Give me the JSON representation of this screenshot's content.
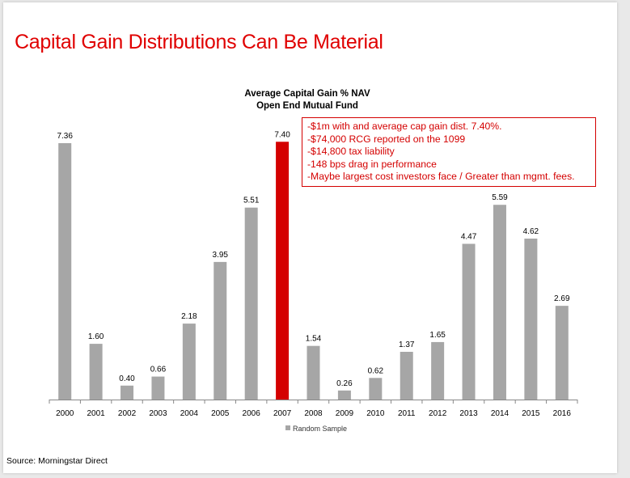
{
  "slide": {
    "title": "Capital Gain Distributions Can Be Material",
    "source": "Source: Morningstar Direct",
    "note_lines": [
      "-$1m with and average cap gain dist. 7.40%.",
      "-$74,000 RCG reported on the 1099",
      "-$14,800 tax liability",
      "-148 bps drag in performance",
      "-Maybe largest cost investors face / Greater than mgmt. fees."
    ]
  },
  "chart_data": {
    "type": "bar",
    "title": "Average Capital Gain % NAV",
    "subtitle": "Open End Mutual Fund",
    "categories": [
      "2000",
      "2001",
      "2002",
      "2003",
      "2004",
      "2005",
      "2006",
      "2007",
      "2008",
      "2009",
      "2010",
      "2011",
      "2012",
      "2013",
      "2014",
      "2015",
      "2016"
    ],
    "series": [
      {
        "name": "Random Sample",
        "values": [
          7.36,
          1.6,
          0.4,
          0.66,
          2.18,
          3.95,
          5.51,
          7.4,
          1.54,
          0.26,
          0.62,
          1.37,
          1.65,
          4.47,
          5.59,
          4.62,
          2.69
        ]
      }
    ],
    "data_labels": [
      "7.36",
      "1.60",
      "0.40",
      "0.66",
      "2.18",
      "3.95",
      "5.51",
      "7.40",
      "1.54",
      "0.26",
      "0.62",
      "1.37",
      "1.65",
      "4.47",
      "5.59",
      "4.62",
      "2.69"
    ],
    "highlight_category": "2007",
    "colors": {
      "bar": "#a6a6a6",
      "highlight": "#d40000",
      "title": "#e00000"
    },
    "legend_position": "bottom",
    "grid": false,
    "y_axis_visible": false,
    "ylim": [
      0,
      8
    ]
  }
}
